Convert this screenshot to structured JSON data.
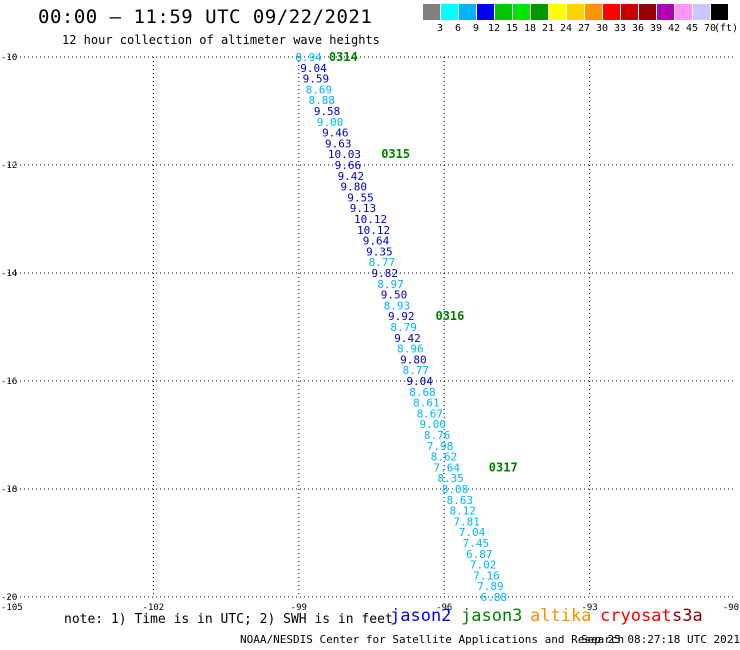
{
  "header": {
    "title": "00:00 – 11:59 UTC 09/22/2021",
    "subtitle": "12 hour collection of altimeter wave heights"
  },
  "color_scale": {
    "colors": [
      "#808080",
      "#00ffff",
      "#00b4ff",
      "#0000ff",
      "#00c800",
      "#00e600",
      "#009600",
      "#ffff00",
      "#ffd200",
      "#ff9600",
      "#ff0000",
      "#c80000",
      "#960000",
      "#b400b4",
      "#ff96ff",
      "#c8c8ff",
      "#000000"
    ],
    "labels": [
      "3",
      "6",
      "9",
      "12",
      "15",
      "18",
      "21",
      "24",
      "27",
      "30",
      "33",
      "36",
      "39",
      "42",
      "45",
      "70"
    ],
    "unit": "(ft)"
  },
  "chart_data": {
    "type": "scatter",
    "title": "00:00 – 11:59 UTC 09/22/2021",
    "subtitle": "12 hour collection of altimeter wave heights",
    "xlim": [
      -105,
      -90
    ],
    "ylim": [
      -20,
      -10
    ],
    "x_ticks": [
      -105,
      -102,
      -99,
      -96,
      -93,
      -90
    ],
    "y_ticks": [
      -10,
      -12,
      -14,
      -16,
      -18,
      -20
    ],
    "grid": true,
    "points": [
      {
        "x": -99.07,
        "y": -10.0,
        "v": "8.94",
        "c": "#00b4ff"
      },
      {
        "x": -98.97,
        "y": -10.2,
        "v": "9.04",
        "c": "#0000c8"
      },
      {
        "x": -98.92,
        "y": -10.4,
        "v": "9.59",
        "c": "#0000c8"
      },
      {
        "x": -98.86,
        "y": -10.6,
        "v": "8.69",
        "c": "#00b4ff"
      },
      {
        "x": -98.8,
        "y": -10.8,
        "v": "8.88",
        "c": "#00b4ff"
      },
      {
        "x": -98.69,
        "y": -11.0,
        "v": "9.58",
        "c": "#0000c8"
      },
      {
        "x": -98.63,
        "y": -11.2,
        "v": "9.00",
        "c": "#00b4ff"
      },
      {
        "x": -98.52,
        "y": -11.4,
        "v": "9.46",
        "c": "#0000c8"
      },
      {
        "x": -98.46,
        "y": -11.6,
        "v": "9.63",
        "c": "#0000c8"
      },
      {
        "x": -98.4,
        "y": -11.8,
        "v": "10.03",
        "c": "#0000c8"
      },
      {
        "x": -98.26,
        "y": -12.0,
        "v": "9.66",
        "c": "#0000c8"
      },
      {
        "x": -98.2,
        "y": -12.2,
        "v": "9.42",
        "c": "#0000c8"
      },
      {
        "x": -98.14,
        "y": -12.4,
        "v": "9.80",
        "c": "#0000c8"
      },
      {
        "x": -98.0,
        "y": -12.6,
        "v": "9.55",
        "c": "#0000c8"
      },
      {
        "x": -97.95,
        "y": -12.8,
        "v": "9.13",
        "c": "#0000c8"
      },
      {
        "x": -97.86,
        "y": -13.0,
        "v": "10.12",
        "c": "#0000c8"
      },
      {
        "x": -97.8,
        "y": -13.2,
        "v": "10.12",
        "c": "#0000c8"
      },
      {
        "x": -97.68,
        "y": -13.4,
        "v": "9.64",
        "c": "#0000c8"
      },
      {
        "x": -97.61,
        "y": -13.6,
        "v": "9.35",
        "c": "#0000c8"
      },
      {
        "x": -97.56,
        "y": -13.8,
        "v": "8.77",
        "c": "#00b4ff"
      },
      {
        "x": -97.5,
        "y": -14.0,
        "v": "9.82",
        "c": "#0000c8"
      },
      {
        "x": -97.38,
        "y": -14.2,
        "v": "8.97",
        "c": "#00b4ff"
      },
      {
        "x": -97.31,
        "y": -14.4,
        "v": "9.50",
        "c": "#0000c8"
      },
      {
        "x": -97.25,
        "y": -14.6,
        "v": "8.93",
        "c": "#00b4ff"
      },
      {
        "x": -97.16,
        "y": -14.8,
        "v": "9.92",
        "c": "#0000c8"
      },
      {
        "x": -97.11,
        "y": -15.0,
        "v": "8.79",
        "c": "#00b4ff"
      },
      {
        "x": -97.03,
        "y": -15.2,
        "v": "9.42",
        "c": "#0000c8"
      },
      {
        "x": -96.97,
        "y": -15.4,
        "v": "8.96",
        "c": "#00b4ff"
      },
      {
        "x": -96.91,
        "y": -15.6,
        "v": "9.80",
        "c": "#0000c8"
      },
      {
        "x": -96.86,
        "y": -15.8,
        "v": "8.77",
        "c": "#00b4ff"
      },
      {
        "x": -96.78,
        "y": -16.0,
        "v": "9.04",
        "c": "#0000c8"
      },
      {
        "x": -96.72,
        "y": -16.2,
        "v": "8.68",
        "c": "#00b4ff"
      },
      {
        "x": -96.64,
        "y": -16.4,
        "v": "8.61",
        "c": "#00b4ff"
      },
      {
        "x": -96.57,
        "y": -16.6,
        "v": "8.67",
        "c": "#00b4ff"
      },
      {
        "x": -96.51,
        "y": -16.8,
        "v": "9.00",
        "c": "#00b4ff"
      },
      {
        "x": -96.42,
        "y": -17.0,
        "v": "8.76",
        "c": "#00b4ff"
      },
      {
        "x": -96.36,
        "y": -17.2,
        "v": "7.98",
        "c": "#00b4ff"
      },
      {
        "x": -96.28,
        "y": -17.4,
        "v": "8.62",
        "c": "#00b4ff"
      },
      {
        "x": -96.22,
        "y": -17.6,
        "v": "7.64",
        "c": "#00b4ff"
      },
      {
        "x": -96.14,
        "y": -17.8,
        "v": "8.35",
        "c": "#00b4ff"
      },
      {
        "x": -96.05,
        "y": -18.0,
        "v": "8.08",
        "c": "#00b4ff"
      },
      {
        "x": -95.95,
        "y": -18.2,
        "v": "8.63",
        "c": "#00b4ff"
      },
      {
        "x": -95.89,
        "y": -18.4,
        "v": "8.12",
        "c": "#00b4ff"
      },
      {
        "x": -95.81,
        "y": -18.6,
        "v": "7.81",
        "c": "#00b4ff"
      },
      {
        "x": -95.7,
        "y": -18.8,
        "v": "7.04",
        "c": "#00b4ff"
      },
      {
        "x": -95.62,
        "y": -19.0,
        "v": "7.45",
        "c": "#00b4ff"
      },
      {
        "x": -95.55,
        "y": -19.2,
        "v": "6.87",
        "c": "#00b4ff"
      },
      {
        "x": -95.47,
        "y": -19.4,
        "v": "7.02",
        "c": "#00b4ff"
      },
      {
        "x": -95.4,
        "y": -19.6,
        "v": "7.16",
        "c": "#00b4ff"
      },
      {
        "x": -95.32,
        "y": -19.8,
        "v": "7.89",
        "c": "#00b4ff"
      },
      {
        "x": -95.25,
        "y": -20.0,
        "v": "6.88",
        "c": "#00b4ff"
      }
    ],
    "time_labels": [
      {
        "x": -98.38,
        "y": -10.0,
        "text": "0314"
      },
      {
        "x": -97.3,
        "y": -11.8,
        "text": "0315"
      },
      {
        "x": -96.18,
        "y": -14.8,
        "text": "0316"
      },
      {
        "x": -95.08,
        "y": -17.6,
        "text": "0317"
      }
    ],
    "time_label_color": "#008000"
  },
  "footer": {
    "note": "note: 1) Time is in UTC; 2) SWH is in feet",
    "missions": [
      {
        "name": "jason2",
        "color": "#0000ff"
      },
      {
        "name": "jason3",
        "color": "#008000"
      },
      {
        "name": "altika",
        "color": "#ff8c00"
      },
      {
        "name": "cryosat",
        "color": "#ff0000"
      },
      {
        "name": "s3a",
        "color": "#8b0000"
      }
    ],
    "credit": "NOAA/NESDIS Center for Satellite Applications and Research",
    "timestamp": "Sep 25 08:27:18 UTC 2021"
  }
}
